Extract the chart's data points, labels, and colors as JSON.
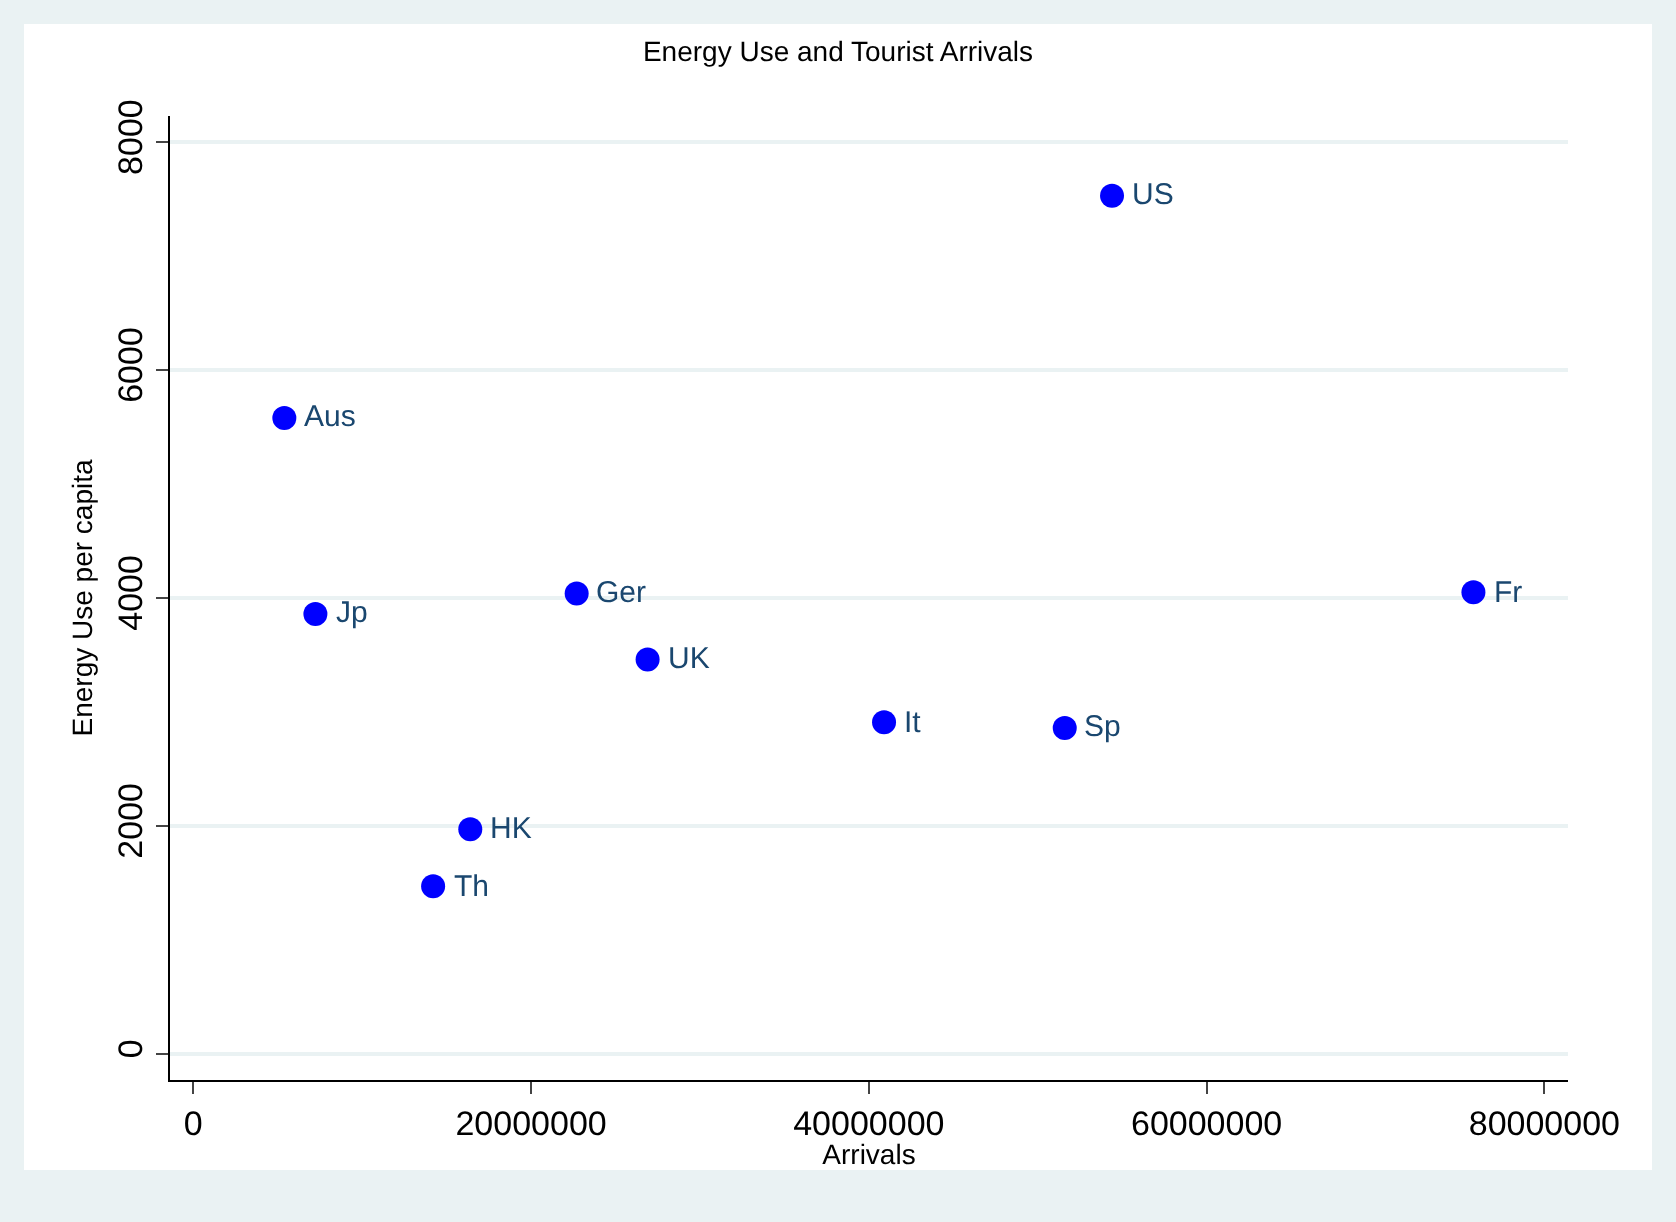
{
  "chart_data": {
    "type": "scatter",
    "title": "Energy Use and Tourist Arrivals",
    "xlabel": "Arrivals",
    "ylabel": "Energy Use per capita",
    "x": [
      54400000,
      5390000,
      7230000,
      22700000,
      26900000,
      40900000,
      51600000,
      75800000,
      16400000,
      14200000
    ],
    "series": [
      {
        "color": "#0000ff",
        "values": [
          7530,
          5580,
          3860,
          4040,
          3460,
          2910,
          2860,
          4050,
          1970,
          1470
        ]
      }
    ],
    "annotations": [
      {
        "text": "US",
        "x": 54400000,
        "y": 7530
      },
      {
        "text": "Aus",
        "x": 5390000,
        "y": 5580
      },
      {
        "text": "Jp",
        "x": 7230000,
        "y": 3860
      },
      {
        "text": "Ger",
        "x": 22700000,
        "y": 4040
      },
      {
        "text": "UK",
        "x": 26900000,
        "y": 3460
      },
      {
        "text": "It",
        "x": 40900000,
        "y": 2910
      },
      {
        "text": "Sp",
        "x": 51600000,
        "y": 2860
      },
      {
        "text": "Fr",
        "x": 75800000,
        "y": 4050
      },
      {
        "text": "HK",
        "x": 16400000,
        "y": 1970
      },
      {
        "text": "Th",
        "x": 14200000,
        "y": 1470
      }
    ],
    "xlim": [
      -1380000,
      81400000
    ],
    "xticks": [
      0,
      20000000,
      40000000,
      60000000,
      80000000
    ],
    "ylim": [
      -230,
      8230
    ],
    "yticks": [
      0,
      2000,
      4000,
      6000,
      8000
    ],
    "grid": "y",
    "legend": false,
    "marker": "circle"
  }
}
